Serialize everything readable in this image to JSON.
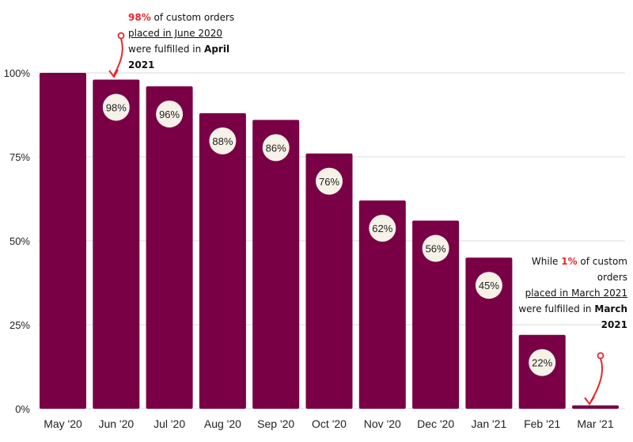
{
  "colors": {
    "bar": "#7a0045",
    "label_circle": "#f6f2e8",
    "grid": "#d9d9d9",
    "annotation_accent": "#e8262b"
  },
  "chart_data": {
    "type": "bar",
    "categories": [
      "May '20",
      "Jun '20",
      "Jul '20",
      "Aug '20",
      "Sep '20",
      "Oct '20",
      "Nov '20",
      "Dec '20",
      "Jan '21",
      "Feb '21",
      "Mar '21"
    ],
    "values": [
      100,
      98,
      96,
      88,
      86,
      76,
      62,
      56,
      45,
      22,
      1
    ],
    "data_labels": [
      "",
      "98%",
      "96%",
      "88%",
      "86%",
      "76%",
      "62%",
      "56%",
      "45%",
      "22%",
      ""
    ],
    "y_ticks": [
      0,
      25,
      50,
      75,
      100
    ],
    "y_tick_labels": [
      "0%",
      "25%",
      "50%",
      "75%",
      "100%"
    ],
    "ylim": [
      0,
      100
    ],
    "grid": true,
    "annotations": [
      {
        "target": "Jun '20",
        "parts": {
          "pct": "98%",
          "text1": " of custom orders",
          "text2": "placed in June 2020",
          "text3": "were fulfilled in",
          "bold": "April 2021"
        }
      },
      {
        "target": "Mar '21",
        "parts": {
          "pre": "While ",
          "pct": "1%",
          "text1": " of custom orders",
          "ul": "placed in March 2021",
          "text2": " were fulfilled in",
          "bold": "March 2021"
        }
      }
    ]
  }
}
